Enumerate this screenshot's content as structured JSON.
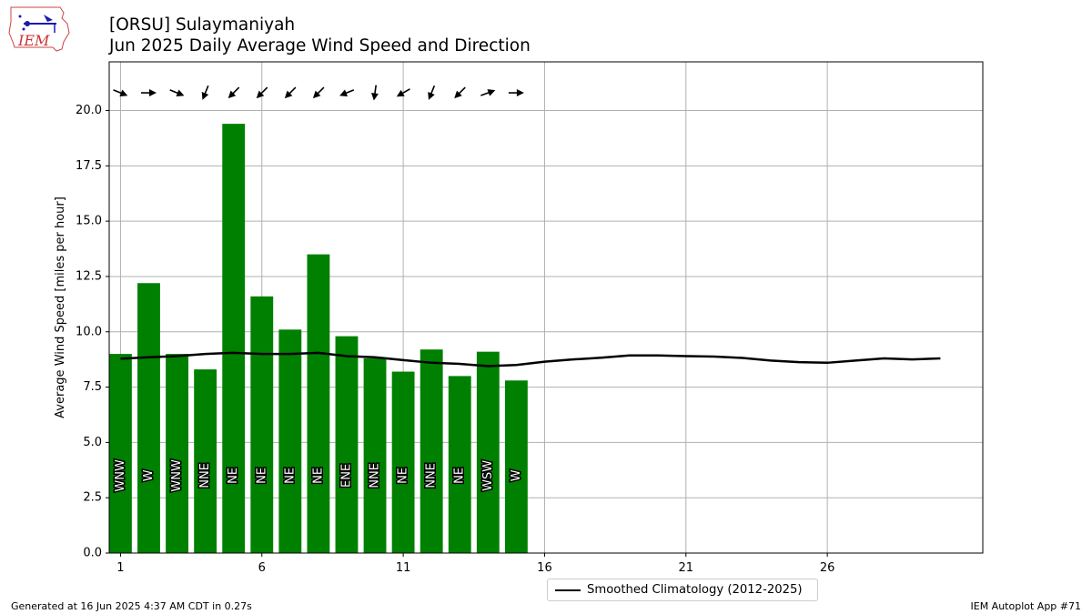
{
  "header": {
    "title_line1": "[ORSU] Sulaymaniyah",
    "title_line2": "Jun 2025 Daily Average Wind Speed and Direction",
    "logo_text": "IEM"
  },
  "footer": {
    "generated": "Generated at 16 Jun 2025 4:37 AM CDT in 0.27s",
    "app": "IEM Autoplot App #71"
  },
  "legend": {
    "climatology_label": "Smoothed Climatology (2012-2025)"
  },
  "colors": {
    "bar": "#008000",
    "line": "#000000",
    "grid": "#b0b0b0"
  },
  "chart_data": {
    "type": "bar",
    "ylabel": "Average Wind Speed [miles per hour]",
    "xlabel": "",
    "ylim": [
      0,
      22.2
    ],
    "xlim": [
      0.6,
      31.5
    ],
    "yticks": [
      0.0,
      2.5,
      5.0,
      7.5,
      10.0,
      12.5,
      15.0,
      17.5,
      20.0
    ],
    "xticks": [
      1,
      6,
      11,
      16,
      21,
      26
    ],
    "grid": true,
    "legend_position": "bottom-center",
    "days": [
      1,
      2,
      3,
      4,
      5,
      6,
      7,
      8,
      9,
      10,
      11,
      12,
      13,
      14,
      15
    ],
    "values": [
      9.0,
      12.2,
      9.0,
      8.3,
      19.4,
      11.6,
      10.1,
      13.5,
      9.8,
      8.8,
      8.2,
      9.2,
      8.0,
      9.1,
      7.8
    ],
    "directions": [
      "WNW",
      "W",
      "WNW",
      "NNE",
      "NE",
      "NE",
      "NE",
      "NE",
      "ENE",
      "NNE",
      "NE",
      "NNE",
      "NE",
      "WSW",
      "W"
    ],
    "arrow_degrees": [
      292,
      270,
      292,
      22,
      45,
      45,
      45,
      45,
      68,
      8,
      60,
      22,
      45,
      250,
      270
    ],
    "climatology": {
      "name": "Smoothed Climatology (2012-2025)",
      "x": [
        1,
        2,
        3,
        4,
        5,
        6,
        7,
        8,
        9,
        10,
        11,
        12,
        13,
        14,
        15,
        16,
        17,
        18,
        19,
        20,
        21,
        22,
        23,
        24,
        25,
        26,
        27,
        28,
        29,
        30
      ],
      "y": [
        8.78,
        8.85,
        8.9,
        9.0,
        9.05,
        9.0,
        9.0,
        9.05,
        8.9,
        8.85,
        8.72,
        8.6,
        8.55,
        8.45,
        8.5,
        8.65,
        8.75,
        8.83,
        8.93,
        8.93,
        8.9,
        8.88,
        8.82,
        8.7,
        8.63,
        8.6,
        8.7,
        8.8,
        8.75,
        8.8
      ]
    }
  }
}
